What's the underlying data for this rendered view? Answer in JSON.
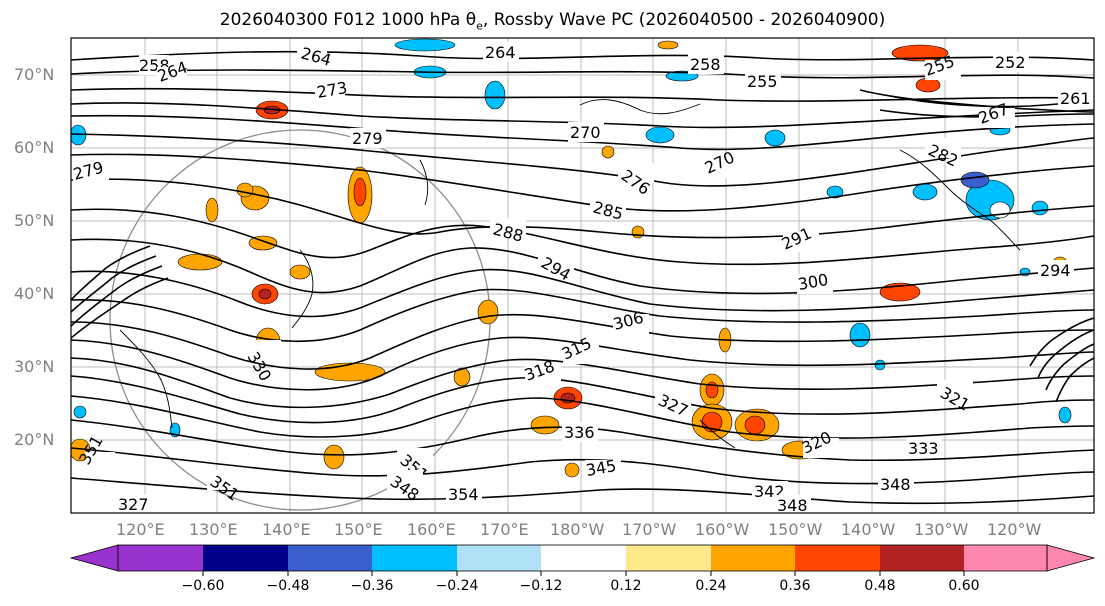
{
  "title_main": "2026040300 F012 1000 hPa θ",
  "title_sub": "e",
  "title_rest": ", Rossby Wave PC (2026040500 - 2026040900)",
  "lat_labels": [
    "70°N",
    "60°N",
    "50°N",
    "40°N",
    "30°N",
    "20°N"
  ],
  "lon_labels": [
    "120°E",
    "130°E",
    "140°E",
    "150°E",
    "160°E",
    "170°E",
    "180°W",
    "170°W",
    "160°W",
    "150°W",
    "140°W",
    "130°W",
    "120°W"
  ],
  "contour_labels": [
    "258",
    "264",
    "264",
    "264",
    "258",
    "255",
    "255",
    "252",
    "261",
    "273",
    "279",
    "270",
    "276",
    "270",
    "267",
    "282",
    "279",
    "285",
    "288",
    "291",
    "294",
    "300",
    "306",
    "315",
    "318",
    "321",
    "327",
    "330",
    "336",
    "333",
    "345",
    "348",
    "351",
    "348",
    "351",
    "354",
    "342",
    "348",
    "320",
    "294",
    "351",
    "327"
  ],
  "colorbar": {
    "ticks": [
      "−0.60",
      "−0.48",
      "−0.36",
      "−0.24",
      "−0.12",
      "0.12",
      "0.24",
      "0.36",
      "0.48",
      "0.60"
    ],
    "colors": [
      "#9932cc",
      "#00008b",
      "#3a5fcd",
      "#00bfff",
      "#b0e0f6",
      "#ffffff",
      "#ffe88a",
      "#ffa500",
      "#ff4500",
      "#b22222",
      "#ff86ae"
    ]
  }
}
